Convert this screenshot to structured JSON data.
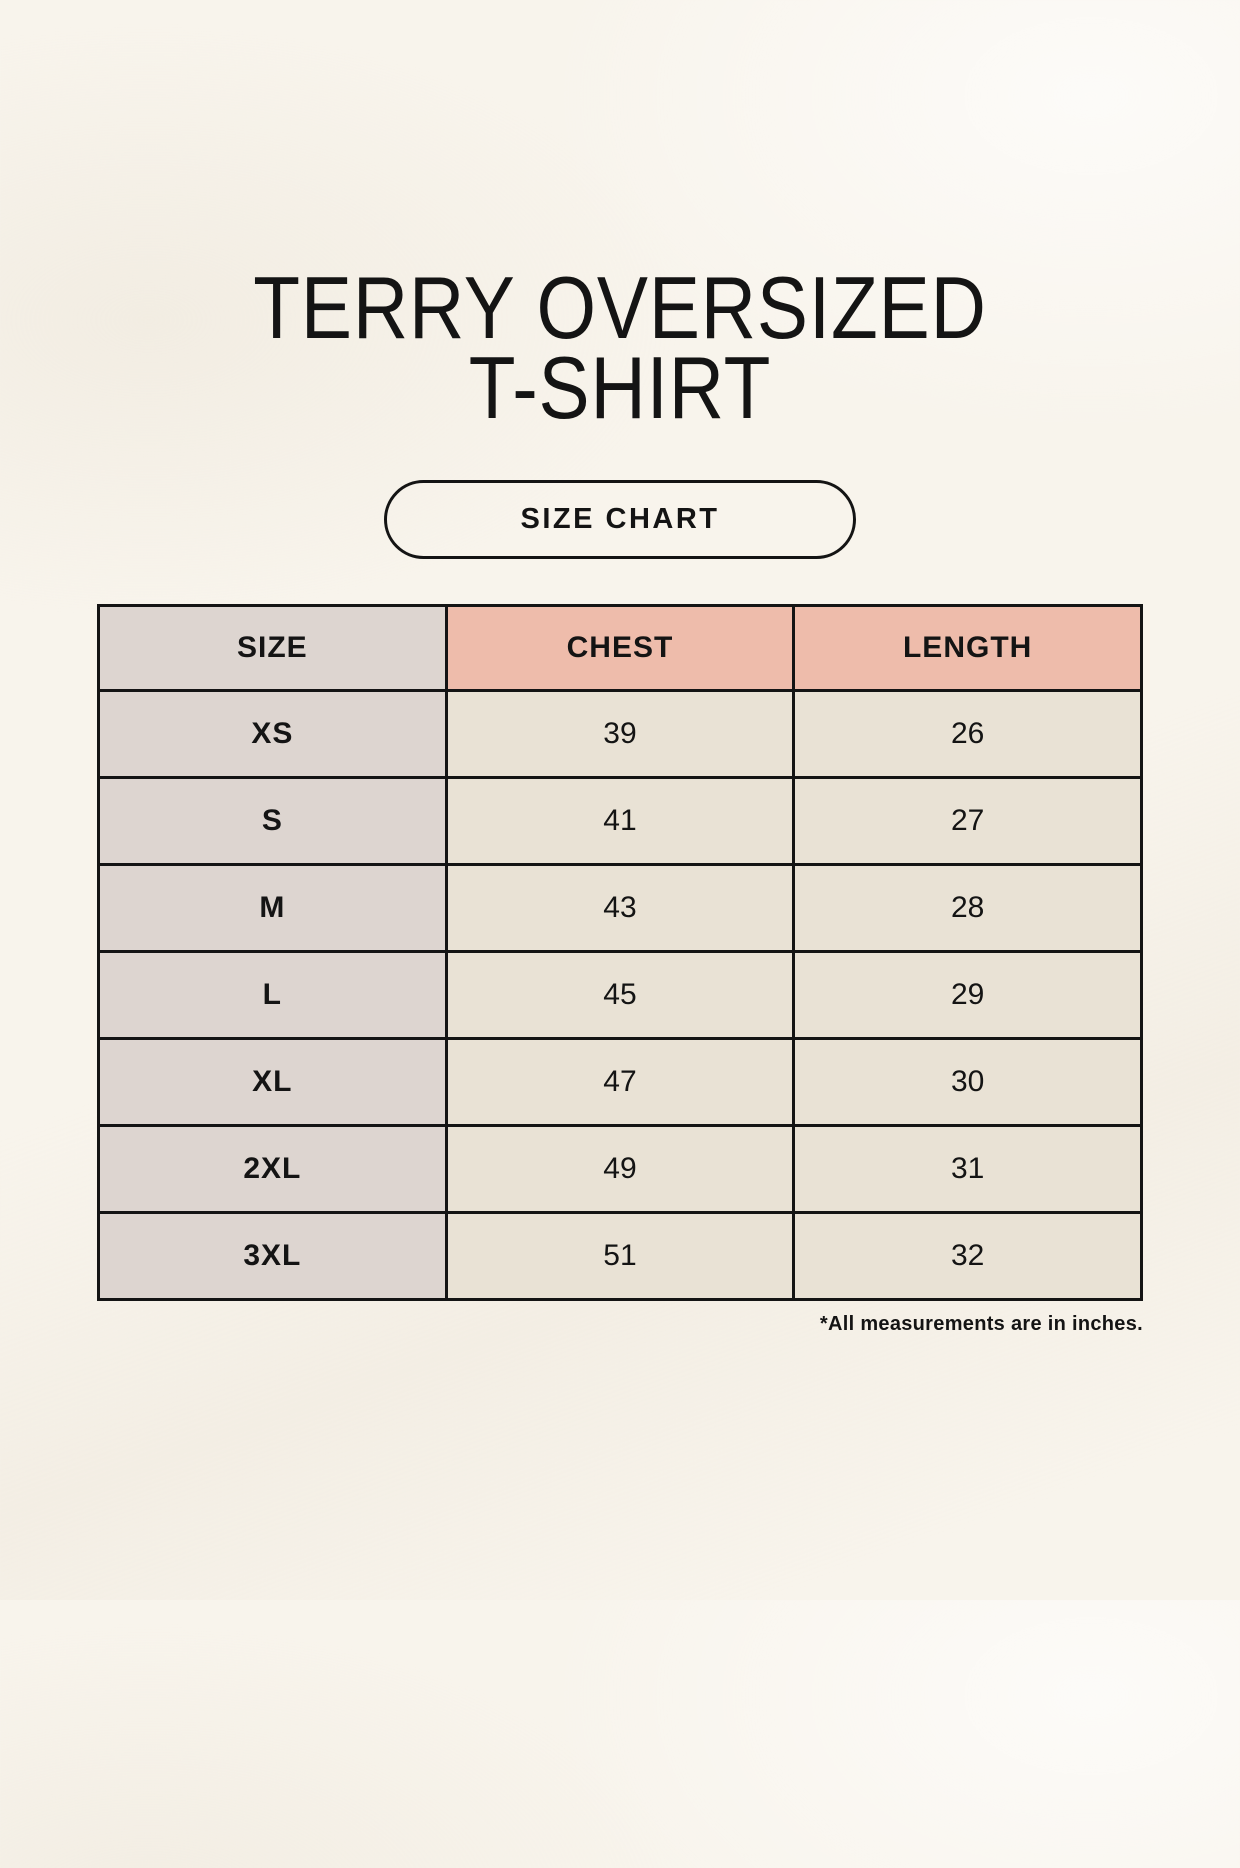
{
  "header": {
    "title_line1": "TERRY OVERSIZED",
    "title_line2": "T-SHIRT",
    "button_label": "SIZE CHART"
  },
  "footnote": "*All measurements are in inches.",
  "colors": {
    "page_background": "#f8f4ec",
    "size_column_background": "#ddd5d0",
    "header_accent_background": "#eebcab",
    "data_cell_background": "#e9e2d5",
    "table_border": "#141414",
    "text": "#141414"
  },
  "chart_data": {
    "type": "table",
    "title": "TERRY OVERSIZED T-SHIRT",
    "units": "inches",
    "columns": [
      "SIZE",
      "CHEST",
      "LENGTH"
    ],
    "rows": [
      [
        "XS",
        "39",
        "26"
      ],
      [
        "S",
        "41",
        "27"
      ],
      [
        "M",
        "43",
        "28"
      ],
      [
        "L",
        "45",
        "29"
      ],
      [
        "XL",
        "47",
        "30"
      ],
      [
        "2XL",
        "49",
        "31"
      ],
      [
        "3XL",
        "51",
        "32"
      ]
    ]
  }
}
